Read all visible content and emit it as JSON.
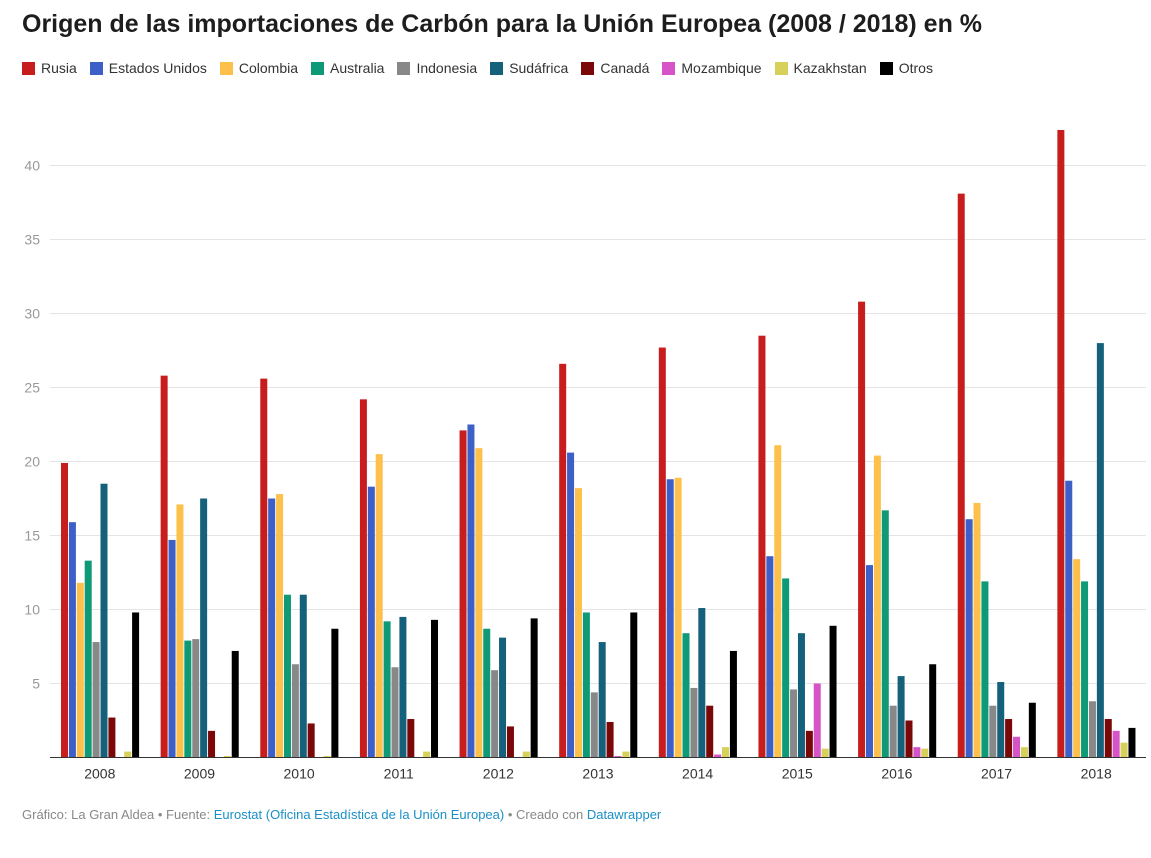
{
  "title": "Origen de las importaciones de Carbón para la Unión Europea (2008 / 2018) en %",
  "footer": {
    "graphic_label": "Gráfico: La Gran Aldea",
    "sep1": " • ",
    "source_label": "Fuente: ",
    "source_link": "Eurostat (Oficina Estadística de la Unión Europea)",
    "sep2": " • ",
    "created_label": "Creado con ",
    "created_link": "Datawrapper"
  },
  "chart_data": {
    "type": "bar",
    "title": "Origen de las importaciones de Carbón para la Unión Europea (2008 / 2018) en %",
    "xlabel": "",
    "ylabel": "",
    "ylim": [
      0,
      43
    ],
    "yticks": [
      5,
      10,
      15,
      20,
      25,
      30,
      35,
      40
    ],
    "grid": true,
    "legend_position": "top-left",
    "categories": [
      "2008",
      "2009",
      "2010",
      "2011",
      "2012",
      "2013",
      "2014",
      "2015",
      "2016",
      "2017",
      "2018"
    ],
    "series": [
      {
        "name": "Rusia",
        "color": "#c71e1d",
        "values": [
          19.9,
          25.8,
          25.6,
          24.2,
          22.1,
          26.6,
          27.7,
          28.5,
          30.8,
          38.1,
          42.4
        ]
      },
      {
        "name": "Estados Unidos",
        "color": "#3c5fc8",
        "values": [
          15.9,
          14.7,
          17.5,
          18.3,
          22.5,
          20.6,
          18.8,
          13.6,
          13.0,
          16.1,
          18.7
        ]
      },
      {
        "name": "Colombia",
        "color": "#fdc04a",
        "values": [
          11.8,
          17.1,
          17.8,
          20.5,
          20.9,
          18.2,
          18.9,
          21.1,
          20.4,
          17.2,
          13.4
        ]
      },
      {
        "name": "Australia",
        "color": "#0e9a77",
        "values": [
          13.3,
          7.9,
          11.0,
          9.2,
          8.7,
          9.8,
          8.4,
          12.1,
          16.7,
          11.9,
          11.9
        ]
      },
      {
        "name": "Indonesia",
        "color": "#888888",
        "values": [
          7.8,
          8.0,
          6.3,
          6.1,
          5.9,
          4.4,
          4.7,
          4.6,
          3.5,
          3.5,
          3.8
        ]
      },
      {
        "name": "Sudáfrica",
        "color": "#15607a",
        "values": [
          18.5,
          17.5,
          11.0,
          9.5,
          8.1,
          7.8,
          10.1,
          8.4,
          5.5,
          5.1,
          28.0
        ]
      },
      {
        "name": "Canadá",
        "color": "#7a0809",
        "values": [
          2.7,
          1.8,
          2.3,
          2.6,
          2.1,
          2.4,
          3.5,
          1.8,
          2.5,
          2.6,
          2.6
        ]
      },
      {
        "name": "Mozambique",
        "color": "#d753c8",
        "values": [
          0.0,
          0.0,
          0.0,
          0.0,
          0.0,
          0.1,
          0.2,
          5.0,
          0.7,
          1.4,
          1.8
        ]
      },
      {
        "name": "Kazakhstan",
        "color": "#d7d05b",
        "values": [
          0.4,
          0.1,
          0.1,
          0.4,
          0.4,
          0.4,
          0.7,
          0.6,
          0.6,
          0.7,
          1.0
        ]
      },
      {
        "name": "Otros",
        "color": "#000000",
        "values": [
          9.8,
          7.2,
          8.7,
          9.3,
          9.4,
          9.8,
          7.2,
          8.9,
          6.3,
          3.7,
          2.0
        ]
      }
    ]
  }
}
